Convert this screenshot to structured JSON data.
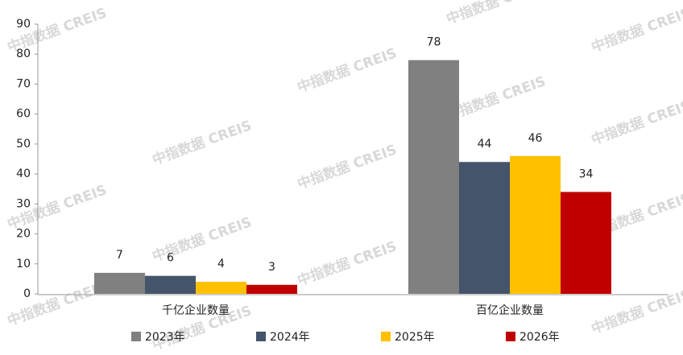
{
  "chart_data": {
    "type": "bar",
    "watermark": "中指数据 CREIS",
    "categories": [
      "千亿企业数量",
      "百亿企业数量"
    ],
    "series": [
      {
        "name": "2023年",
        "color": "#808080",
        "values": [
          7,
          78
        ]
      },
      {
        "name": "2024年",
        "color": "#44546a",
        "values": [
          6,
          44
        ]
      },
      {
        "name": "2025年",
        "color": "#ffc000",
        "values": [
          4,
          46
        ]
      },
      {
        "name": "2026年",
        "color": "#c00000",
        "values": [
          3,
          34
        ]
      }
    ],
    "ylim": [
      0,
      90
    ],
    "yticks": [
      0,
      10,
      20,
      30,
      40,
      50,
      60,
      70,
      80,
      90
    ],
    "grid": false,
    "legend": "bottom"
  }
}
